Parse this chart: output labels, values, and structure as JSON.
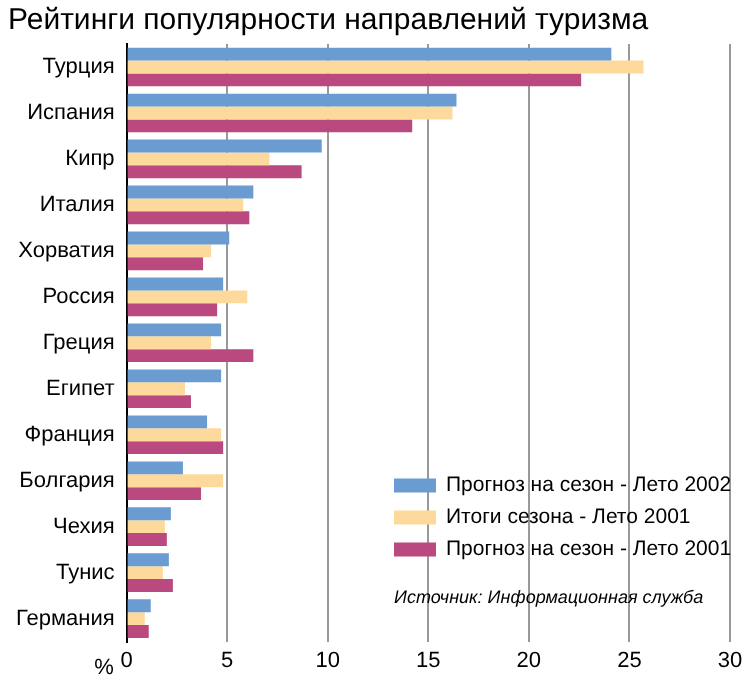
{
  "chart_data": {
    "type": "bar",
    "orientation": "horizontal",
    "title": "Рейтинги популярности направлений туризма",
    "xlabel": "%",
    "categories": [
      "Турция",
      "Испания",
      "Кипр",
      "Италия",
      "Хорватия",
      "Россия",
      "Греция",
      "Египет",
      "Франция",
      "Болгария",
      "Чехия",
      "Тунис",
      "Германия"
    ],
    "series": [
      {
        "name": "Прогноз на сезон - Лето 2002",
        "color": "#6a9bd1",
        "values": [
          24.1,
          16.4,
          9.7,
          6.3,
          5.1,
          4.8,
          4.7,
          4.7,
          4.0,
          2.8,
          2.2,
          2.1,
          1.2
        ]
      },
      {
        "name": "Итоги сезона - Лето 2001",
        "color": "#fdd99b",
        "values": [
          25.7,
          16.2,
          7.1,
          5.8,
          4.2,
          6.0,
          4.2,
          2.9,
          4.7,
          4.8,
          1.9,
          1.8,
          0.9
        ]
      },
      {
        "name": "Прогноз на сезон - Лето 2001",
        "color": "#b9497f",
        "values": [
          22.6,
          14.2,
          8.7,
          6.1,
          3.8,
          4.5,
          6.3,
          3.2,
          4.8,
          3.7,
          2.0,
          2.3,
          1.1
        ]
      }
    ],
    "xlim": [
      0,
      30
    ],
    "xticks": [
      0,
      5,
      10,
      15,
      20,
      25,
      30
    ],
    "grid": "x",
    "legend": "bottom right",
    "annotations": [
      "Источник: Информационная служба"
    ]
  }
}
